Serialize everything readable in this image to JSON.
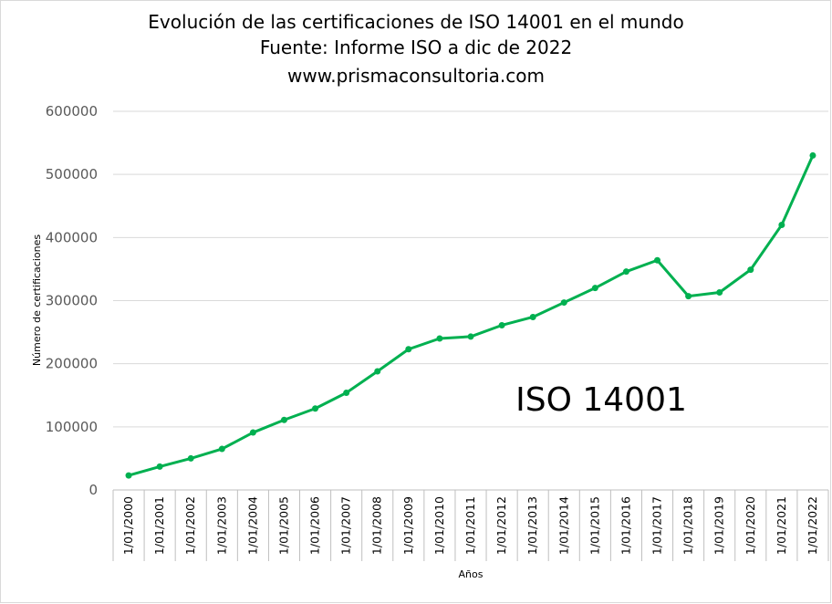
{
  "chart_data": {
    "type": "line",
    "title": "Evolución de las certificaciones de ISO 14001 en el mundo",
    "subtitle": "Fuente: Informe ISO a dic de 2022",
    "source_url": "www.prismaconsultoria.com",
    "xlabel": "Años",
    "ylabel": "Número de certificaciones",
    "ylim": [
      0,
      600000
    ],
    "yticks": [
      0,
      100000,
      200000,
      300000,
      400000,
      500000,
      600000
    ],
    "ytick_labels": [
      "0",
      "100000",
      "200000",
      "300000",
      "400000",
      "500000",
      "600000"
    ],
    "grid": true,
    "legend": "none",
    "annotation": "ISO 14001",
    "line_color": "#00b050",
    "categories": [
      "1/01/2000",
      "1/01/2001",
      "1/01/2002",
      "1/01/2003",
      "1/01/2004",
      "1/01/2005",
      "1/01/2006",
      "1/01/2007",
      "1/01/2008",
      "1/01/2009",
      "1/01/2010",
      "1/01/2011",
      "1/01/2012",
      "1/01/2013",
      "1/01/2014",
      "1/01/2015",
      "1/01/2016",
      "1/01/2017",
      "1/01/2018",
      "1/01/2019",
      "1/01/2020",
      "1/01/2021",
      "1/01/2022"
    ],
    "series": [
      {
        "values": [
          23000,
          37000,
          50000,
          65000,
          91000,
          111000,
          129000,
          154000,
          188000,
          223000,
          240000,
          243000,
          261000,
          274000,
          297000,
          320000,
          346000,
          364000,
          307000,
          313000,
          349000,
          420000,
          530000
        ]
      }
    ]
  }
}
